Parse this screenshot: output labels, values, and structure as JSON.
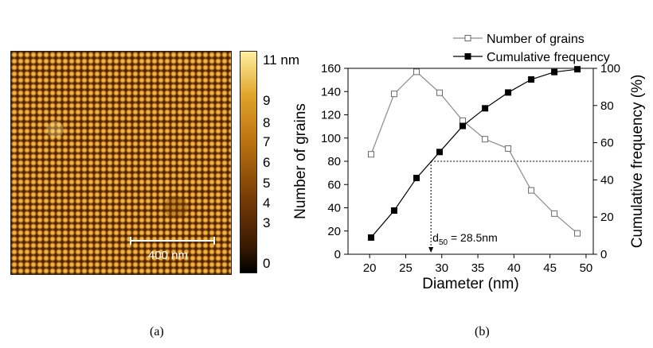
{
  "panel_a": {
    "scale_label": "400 nm",
    "colorbar_labels": [
      "11 nm",
      "9",
      "8",
      "7",
      "6",
      "5",
      "4",
      "3",
      "0"
    ],
    "caption": "(a)"
  },
  "panel_b": {
    "caption": "(b)"
  },
  "chart_data": {
    "type": "line",
    "xlabel": "Diameter (nm)",
    "ylabel_left": "Number of grains",
    "ylabel_right": "Cumulative frequency (%)",
    "xlim": [
      17,
      51
    ],
    "ylim_left": [
      0,
      160
    ],
    "ylim_right": [
      0,
      100
    ],
    "x_ticks": [
      20,
      25,
      30,
      35,
      40,
      45,
      50
    ],
    "y_ticks_left": [
      0,
      20,
      40,
      60,
      80,
      100,
      120,
      140,
      160
    ],
    "y_ticks_right": [
      0,
      20,
      40,
      60,
      80,
      100
    ],
    "legend_position": "top-right",
    "series": [
      {
        "name": "Number of grains",
        "axis": "left",
        "marker": "open-square",
        "color": "#8c8c8c",
        "x": [
          20.2,
          23.4,
          26.5,
          29.7,
          32.9,
          36.0,
          39.2,
          42.4,
          45.6,
          48.8
        ],
        "values": [
          86,
          138,
          157,
          139,
          115,
          99,
          91,
          55,
          35,
          18
        ]
      },
      {
        "name": "Cumulative frequency",
        "axis": "right",
        "marker": "filled-square",
        "color": "#000000",
        "x": [
          20.2,
          23.4,
          26.5,
          29.7,
          32.9,
          36.0,
          39.2,
          42.4,
          45.6,
          48.8
        ],
        "values": [
          9,
          23.5,
          41,
          55,
          69,
          78.5,
          87,
          94,
          98,
          99.5
        ]
      }
    ],
    "annotation": {
      "text": "d",
      "subscript": "50",
      "value_text": " = 28.5nm",
      "x": 28.5,
      "y_right": 50
    }
  }
}
